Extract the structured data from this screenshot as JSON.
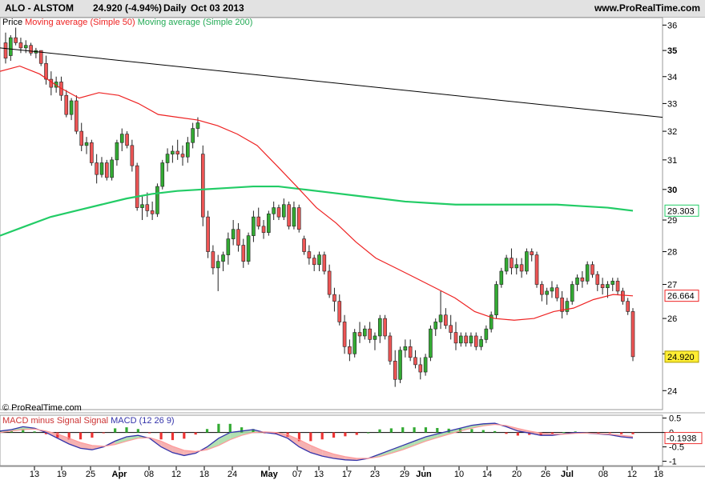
{
  "header": {
    "symbol": "ALO - ALSTOM",
    "price": "24.920 (-4.94%)",
    "period": "Daily",
    "date": "Oct 03 2013",
    "site": "www.ProRealTime.com"
  },
  "legend": {
    "price": "Price",
    "ma50": "Moving average (Simple 50)",
    "ma200": "Moving average (Simple 200)"
  },
  "copyright": "© ProRealTime.com",
  "macd_legend": {
    "hist": "MACD minus Signal Signal",
    "macd": "MACD (12 26 9)"
  },
  "colors": {
    "up": "#33aa33",
    "down": "#ee5555",
    "ma50": "#ee2222",
    "ma200": "#22cc66",
    "trend": "#000000",
    "macd": "#3333aa",
    "signal": "#ff9999"
  },
  "chart_data": {
    "type": "candlestick",
    "price_axis": {
      "ylim": [
        23.5,
        36.3
      ],
      "ticks": [
        24,
        25,
        26,
        27,
        28,
        29,
        30,
        31,
        32,
        33,
        34,
        35,
        36
      ],
      "bold": [
        25,
        30,
        35
      ]
    },
    "x_ticks": [
      "13",
      "19",
      "25",
      "Apr",
      "08",
      "12",
      "18",
      "24",
      "May",
      "07",
      "13",
      "17",
      "23",
      "29",
      "Jun",
      "10",
      "14",
      "20",
      "26",
      "Jul",
      "08",
      "12",
      "18"
    ],
    "bold_ticks": [
      "Apr",
      "May",
      "Jun",
      "Jul"
    ],
    "last_labels": {
      "ma200": "29.303",
      "ma50": "26.664",
      "close": "24.920"
    },
    "candles": [
      [
        35.3,
        35.7,
        34.5,
        34.7
      ],
      [
        34.8,
        35.6,
        34.6,
        35.5
      ],
      [
        35.5,
        35.9,
        35.2,
        35.3
      ],
      [
        35.3,
        35.5,
        34.9,
        35.1
      ],
      [
        35.1,
        35.4,
        34.9,
        35.2
      ],
      [
        35.2,
        35.3,
        34.8,
        34.9
      ],
      [
        34.9,
        35.1,
        34.7,
        35.0
      ],
      [
        35.0,
        35.0,
        34.4,
        34.5
      ],
      [
        34.5,
        34.8,
        33.7,
        33.9
      ],
      [
        33.9,
        34.2,
        33.3,
        33.6
      ],
      [
        33.6,
        34.0,
        33.4,
        33.8
      ],
      [
        33.8,
        34.0,
        33.1,
        33.3
      ],
      [
        33.3,
        33.5,
        32.5,
        32.6
      ],
      [
        32.6,
        33.2,
        32.4,
        33.1
      ],
      [
        33.1,
        33.3,
        31.9,
        32.0
      ],
      [
        32.0,
        32.3,
        31.3,
        31.5
      ],
      [
        31.5,
        31.8,
        31.2,
        31.6
      ],
      [
        31.6,
        31.7,
        30.8,
        30.9
      ],
      [
        30.9,
        31.2,
        30.2,
        30.5
      ],
      [
        30.5,
        31.1,
        30.4,
        30.9
      ],
      [
        30.9,
        31.0,
        30.3,
        30.4
      ],
      [
        30.4,
        31.1,
        30.3,
        31.0
      ],
      [
        31.0,
        31.7,
        30.8,
        31.6
      ],
      [
        31.6,
        32.1,
        31.3,
        31.9
      ],
      [
        31.9,
        32.0,
        31.4,
        31.5
      ],
      [
        31.5,
        31.7,
        30.6,
        30.8
      ],
      [
        30.8,
        30.9,
        29.3,
        29.4
      ],
      [
        29.4,
        29.8,
        29.0,
        29.5
      ],
      [
        29.5,
        29.9,
        29.1,
        29.3
      ],
      [
        29.3,
        29.6,
        29.0,
        29.2
      ],
      [
        29.2,
        30.2,
        29.1,
        30.1
      ],
      [
        30.1,
        31.0,
        30.0,
        30.9
      ],
      [
        30.9,
        31.4,
        30.6,
        31.2
      ],
      [
        31.2,
        31.5,
        30.9,
        31.3
      ],
      [
        31.3,
        31.7,
        31.0,
        31.2
      ],
      [
        31.2,
        31.5,
        30.8,
        31.1
      ],
      [
        31.1,
        31.8,
        30.9,
        31.6
      ],
      [
        31.6,
        32.3,
        31.4,
        32.1
      ],
      [
        32.1,
        32.5,
        31.8,
        32.3
      ],
      [
        31.2,
        31.5,
        28.8,
        29.1
      ],
      [
        29.1,
        29.3,
        27.8,
        28.0
      ],
      [
        28.0,
        28.2,
        27.3,
        27.5
      ],
      [
        27.5,
        27.9,
        26.8,
        27.7
      ],
      [
        27.7,
        28.0,
        27.4,
        27.9
      ],
      [
        27.9,
        28.6,
        27.6,
        28.4
      ],
      [
        28.4,
        29.0,
        28.2,
        28.7
      ],
      [
        28.7,
        28.9,
        28.0,
        28.2
      ],
      [
        28.2,
        28.4,
        27.5,
        27.7
      ],
      [
        27.7,
        28.6,
        27.6,
        28.5
      ],
      [
        28.5,
        29.3,
        28.3,
        29.1
      ],
      [
        29.1,
        29.4,
        28.7,
        28.8
      ],
      [
        28.8,
        29.0,
        28.4,
        28.6
      ],
      [
        28.6,
        29.3,
        28.5,
        29.2
      ],
      [
        29.2,
        29.6,
        29.0,
        29.4
      ],
      [
        29.4,
        29.5,
        29.0,
        29.1
      ],
      [
        29.1,
        29.7,
        29.0,
        29.5
      ],
      [
        29.5,
        29.6,
        28.7,
        28.8
      ],
      [
        28.8,
        29.6,
        28.7,
        29.4
      ],
      [
        29.4,
        29.5,
        28.6,
        28.7
      ],
      [
        28.4,
        28.5,
        27.9,
        28.0
      ],
      [
        28.0,
        28.2,
        27.6,
        27.8
      ],
      [
        27.8,
        27.9,
        27.4,
        27.6
      ],
      [
        27.6,
        28.0,
        27.4,
        27.9
      ],
      [
        27.9,
        28.0,
        27.3,
        27.4
      ],
      [
        27.4,
        27.6,
        26.6,
        26.7
      ],
      [
        26.7,
        26.9,
        26.2,
        26.5
      ],
      [
        26.5,
        26.7,
        25.8,
        25.9
      ],
      [
        25.9,
        26.1,
        25.0,
        25.2
      ],
      [
        25.2,
        25.4,
        24.8,
        25.0
      ],
      [
        25.0,
        25.7,
        24.9,
        25.6
      ],
      [
        25.6,
        25.9,
        25.3,
        25.5
      ],
      [
        25.5,
        25.8,
        25.4,
        25.7
      ],
      [
        25.7,
        25.9,
        25.3,
        25.4
      ],
      [
        25.4,
        25.6,
        25.1,
        25.5
      ],
      [
        25.5,
        26.1,
        25.3,
        26.0
      ],
      [
        26.0,
        26.1,
        25.4,
        25.5
      ],
      [
        25.5,
        25.6,
        24.7,
        24.8
      ],
      [
        24.8,
        25.1,
        24.1,
        24.3
      ],
      [
        24.3,
        25.2,
        24.2,
        25.1
      ],
      [
        25.1,
        25.4,
        24.9,
        25.2
      ],
      [
        25.2,
        25.4,
        24.8,
        24.9
      ],
      [
        24.9,
        25.1,
        24.6,
        24.7
      ],
      [
        24.7,
        24.9,
        24.3,
        24.5
      ],
      [
        24.5,
        25.0,
        24.4,
        24.9
      ],
      [
        24.9,
        25.8,
        24.8,
        25.7
      ],
      [
        25.7,
        26.0,
        25.5,
        25.9
      ],
      [
        25.9,
        26.8,
        25.7,
        26.1
      ],
      [
        26.1,
        26.3,
        25.7,
        25.8
      ],
      [
        25.8,
        26.1,
        25.4,
        25.6
      ],
      [
        25.6,
        25.9,
        25.1,
        25.3
      ],
      [
        25.3,
        25.6,
        25.2,
        25.5
      ],
      [
        25.5,
        25.6,
        25.2,
        25.3
      ],
      [
        25.3,
        25.6,
        25.2,
        25.5
      ],
      [
        25.5,
        25.6,
        25.1,
        25.2
      ],
      [
        25.2,
        25.5,
        25.1,
        25.4
      ],
      [
        25.4,
        25.8,
        25.3,
        25.7
      ],
      [
        25.7,
        26.2,
        25.6,
        26.1
      ],
      [
        26.1,
        27.1,
        26.0,
        27.0
      ],
      [
        27.0,
        27.5,
        26.9,
        27.4
      ],
      [
        27.4,
        27.9,
        27.3,
        27.8
      ],
      [
        27.8,
        28.1,
        27.3,
        27.5
      ],
      [
        27.5,
        27.8,
        27.3,
        27.6
      ],
      [
        27.6,
        27.8,
        27.2,
        27.4
      ],
      [
        27.4,
        28.1,
        27.3,
        28.0
      ],
      [
        28.0,
        28.1,
        27.7,
        27.9
      ],
      [
        27.9,
        28.0,
        26.9,
        27.0
      ],
      [
        27.0,
        27.1,
        26.5,
        26.7
      ],
      [
        26.7,
        26.9,
        26.4,
        26.8
      ],
      [
        26.8,
        27.1,
        26.6,
        26.9
      ],
      [
        26.9,
        27.0,
        26.5,
        26.6
      ],
      [
        26.6,
        26.8,
        26.0,
        26.2
      ],
      [
        26.2,
        26.6,
        26.1,
        26.5
      ],
      [
        26.5,
        27.1,
        26.4,
        27.0
      ],
      [
        27.0,
        27.3,
        26.8,
        27.2
      ],
      [
        27.2,
        27.4,
        26.9,
        27.1
      ],
      [
        27.1,
        27.7,
        27.0,
        27.6
      ],
      [
        27.6,
        27.7,
        27.2,
        27.3
      ],
      [
        27.3,
        27.4,
        26.8,
        27.0
      ],
      [
        27.0,
        27.2,
        26.7,
        26.9
      ],
      [
        26.9,
        27.1,
        26.6,
        27.0
      ],
      [
        27.0,
        27.2,
        26.8,
        27.1
      ],
      [
        27.1,
        27.2,
        26.7,
        26.8
      ],
      [
        26.8,
        26.9,
        26.4,
        26.5
      ],
      [
        26.5,
        26.6,
        26.1,
        26.2
      ],
      [
        26.2,
        26.3,
        24.8,
        24.92
      ]
    ],
    "ma50": [
      34.2,
      34.4,
      34.1,
      33.6,
      33.2,
      33.4,
      33.3,
      33.0,
      32.6,
      32.5,
      32.4,
      32.2,
      31.9,
      31.5,
      30.8,
      30.1,
      29.4,
      28.9,
      28.3,
      27.8,
      27.5,
      27.2,
      26.9,
      26.6,
      26.2,
      26.0,
      25.95,
      26.0,
      26.2,
      26.3,
      26.55,
      26.7,
      26.66
    ],
    "ma200": [
      28.5,
      28.8,
      29.1,
      29.3,
      29.5,
      29.7,
      29.85,
      29.95,
      30.0,
      30.05,
      30.1,
      30.1,
      30.0,
      29.9,
      29.8,
      29.7,
      29.6,
      29.55,
      29.5,
      29.5,
      29.5,
      29.5,
      29.5,
      29.45,
      29.4,
      29.3
    ],
    "trend": [
      [
        35.1
      ],
      [
        32.5
      ]
    ],
    "macd_axis": {
      "ylim": [
        -1.15,
        0.6
      ],
      "ticks": [
        "0.5",
        "0",
        "-0.5",
        "-1"
      ],
      "last_label": "-0.1938"
    },
    "macd": [
      0.05,
      0.1,
      0.2,
      0.15,
      0.0,
      -0.2,
      -0.4,
      -0.55,
      -0.6,
      -0.5,
      -0.3,
      -0.15,
      -0.1,
      -0.2,
      -0.5,
      -0.7,
      -0.8,
      -0.72,
      -0.5,
      -0.2,
      0.0,
      0.05,
      0.1,
      0.0,
      -0.05,
      -0.2,
      -0.5,
      -0.7,
      -0.82,
      -0.9,
      -0.95,
      -0.97,
      -0.9,
      -0.75,
      -0.6,
      -0.45,
      -0.3,
      -0.15,
      -0.05,
      0.05,
      0.15,
      0.25,
      0.3,
      0.32,
      0.2,
      0.05,
      -0.02,
      -0.1,
      -0.1,
      -0.05,
      0.0,
      -0.02,
      -0.05,
      -0.08,
      -0.15,
      -0.19
    ],
    "signal": [
      0.0,
      0.05,
      0.1,
      0.12,
      0.05,
      -0.05,
      -0.2,
      -0.35,
      -0.45,
      -0.48,
      -0.42,
      -0.3,
      -0.2,
      -0.18,
      -0.3,
      -0.48,
      -0.62,
      -0.66,
      -0.6,
      -0.45,
      -0.25,
      -0.1,
      0.0,
      0.02,
      0.0,
      -0.08,
      -0.25,
      -0.45,
      -0.62,
      -0.75,
      -0.84,
      -0.9,
      -0.9,
      -0.84,
      -0.72,
      -0.6,
      -0.45,
      -0.3,
      -0.18,
      -0.06,
      0.05,
      0.15,
      0.23,
      0.28,
      0.24,
      0.14,
      0.05,
      -0.02,
      -0.06,
      -0.06,
      -0.03,
      -0.02,
      -0.04,
      -0.06,
      -0.1,
      -0.14
    ]
  }
}
